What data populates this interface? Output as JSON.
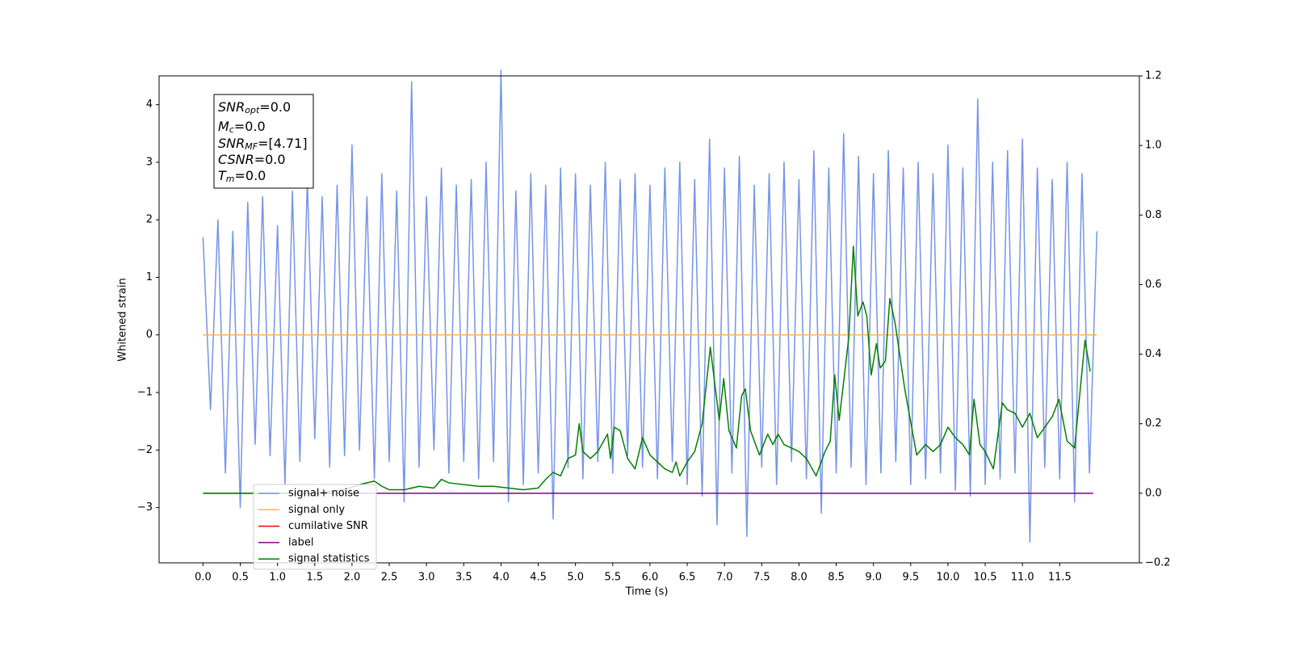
{
  "chart_data": {
    "type": "line",
    "xlabel": "Time (s)",
    "ylabel": "Whitened strain",
    "xlim": [
      -0.59,
      12.57
    ],
    "ylim": [
      -3.96,
      4.5
    ],
    "y2lim": [
      -0.2,
      1.2
    ],
    "xticks": [
      {
        "value": 0,
        "label": "0.0"
      },
      0.5,
      {
        "value": 1,
        "label": "1.0"
      },
      1.5,
      {
        "value": 2,
        "label": "2.0"
      },
      2.5,
      {
        "value": 3,
        "label": "3.0"
      },
      3.5,
      {
        "value": 4,
        "label": "4.0"
      },
      4.5,
      {
        "value": 5,
        "label": "5.0"
      },
      5.5,
      {
        "value": 6,
        "label": "6.0"
      },
      6.5,
      {
        "value": 7,
        "label": "7.0"
      },
      7.5,
      {
        "value": 8,
        "label": "8.0"
      },
      8.5,
      {
        "value": 9,
        "label": "9.0"
      },
      9.5,
      {
        "value": 10,
        "label": "10.0"
      },
      10.5,
      {
        "value": 11,
        "label": "11.0"
      },
      11.5
    ],
    "yticks": [
      {
        "value": -3,
        "label": "−3"
      },
      {
        "value": -2,
        "label": "−2"
      },
      {
        "value": -1,
        "label": "−1"
      },
      0,
      1,
      2,
      3,
      4
    ],
    "y2ticks": [
      {
        "value": -0.2,
        "label": "−0.2"
      },
      {
        "value": 0,
        "label": "0.0"
      },
      0.2,
      0.4,
      0.6,
      0.8,
      {
        "value": 1,
        "label": "1.0"
      },
      1.2
    ],
    "legend": "lower left",
    "annotation": [
      {
        "main": "SNR",
        "sub": "opt",
        "rest": "=0.0"
      },
      {
        "main": "M",
        "sub": "c",
        "rest": "=0.0"
      },
      {
        "main": "SNR",
        "sub": "MF",
        "rest": "=[4.71]"
      },
      {
        "main": "CSNR",
        "rest": "=0.0"
      },
      {
        "main": "T",
        "sub": "m",
        "rest": "=0.0"
      }
    ],
    "series": [
      {
        "name": "signal+ noise",
        "color": "#7694e8",
        "axis": "y",
        "x": [
          0,
          0.1,
          0.2,
          0.3,
          0.4,
          0.5,
          0.6,
          0.7,
          0.8,
          0.9,
          1,
          1.1,
          1.2,
          1.3,
          1.4,
          1.5,
          1.6,
          1.7,
          1.8,
          1.9,
          2,
          2.1,
          2.2,
          2.3,
          2.4,
          2.5,
          2.6,
          2.7,
          2.8,
          2.9,
          3,
          3.1,
          3.2,
          3.3,
          3.4,
          3.5,
          3.6,
          3.7,
          3.8,
          3.9,
          4,
          4.1,
          4.2,
          4.3,
          4.4,
          4.5,
          4.6,
          4.7,
          4.8,
          4.9,
          5,
          5.1,
          5.2,
          5.3,
          5.4,
          5.5,
          5.6,
          5.7,
          5.8,
          5.9,
          6,
          6.1,
          6.2,
          6.3,
          6.4,
          6.5,
          6.6,
          6.7,
          6.8,
          6.9,
          7,
          7.1,
          7.2,
          7.3,
          7.4,
          7.5,
          7.6,
          7.7,
          7.8,
          7.9,
          8,
          8.1,
          8.2,
          8.3,
          8.4,
          8.5,
          8.6,
          8.7,
          8.8,
          8.9,
          9,
          9.1,
          9.2,
          9.3,
          9.4,
          9.5,
          9.6,
          9.7,
          9.8,
          9.9,
          10,
          10.1,
          10.2,
          10.3,
          10.4,
          10.5,
          10.6,
          10.7,
          10.8,
          10.9,
          11,
          11.1,
          11.2,
          11.3,
          11.4,
          11.5,
          11.6,
          11.7,
          11.8,
          11.9,
          12
        ],
        "values": [
          1.7,
          -1.3,
          2.0,
          -2.4,
          1.8,
          -3.0,
          2.3,
          -1.9,
          2.4,
          -2.1,
          1.9,
          -2.6,
          2.5,
          -2.2,
          2.7,
          -1.8,
          2.4,
          -2.3,
          2.6,
          -2.1,
          3.3,
          -2.0,
          2.4,
          -2.5,
          2.8,
          -2.2,
          2.5,
          -2.9,
          4.4,
          -2.3,
          2.4,
          -2.0,
          2.9,
          -2.4,
          2.6,
          -2.2,
          2.7,
          -2.5,
          3.0,
          -2.2,
          4.6,
          -2.9,
          2.5,
          -2.6,
          2.8,
          -2.4,
          2.6,
          -3.2,
          2.9,
          -2.3,
          2.8,
          -2.5,
          2.6,
          -2.2,
          3.0,
          -2.4,
          2.7,
          -2.1,
          2.8,
          -2.3,
          2.6,
          -2.5,
          2.9,
          -2.2,
          3.0,
          -2.6,
          2.7,
          -2.8,
          3.4,
          -3.3,
          2.9,
          -2.4,
          3.1,
          -3.5,
          2.6,
          -2.3,
          2.8,
          -2.6,
          3.0,
          -2.2,
          2.7,
          -2.5,
          3.2,
          -3.1,
          2.9,
          -2.4,
          3.5,
          -2.3,
          3.1,
          -2.6,
          2.8,
          -2.4,
          3.2,
          -2.2,
          2.9,
          -2.6,
          3.0,
          -2.5,
          2.8,
          -2.4,
          3.3,
          -2.7,
          2.9,
          -2.8,
          4.1,
          -2.6,
          3.0,
          -2.5,
          3.2,
          -2.4,
          3.4,
          -3.6,
          2.9,
          -2.3,
          2.7,
          -2.5,
          3.0,
          -2.9,
          2.8,
          -2.4,
          1.8
        ]
      },
      {
        "name": "signal only",
        "color": "#f5b74f",
        "axis": "y",
        "x": [
          0,
          12
        ],
        "values": [
          0,
          0
        ]
      },
      {
        "name": "cumilative SNR",
        "color": "#ff0000",
        "axis": "y2"
      },
      {
        "name": "label",
        "color": "#800080",
        "axis": "y2",
        "x": [
          0,
          11.95
        ],
        "values": [
          0,
          0
        ]
      },
      {
        "name": "signal statistics",
        "color": "#008000",
        "axis": "y2",
        "x": [
          0,
          0.5,
          1,
          1.5,
          1.9,
          2.1,
          2.3,
          2.4,
          2.5,
          2.7,
          2.9,
          3.1,
          3.2,
          3.3,
          3.5,
          3.7,
          3.9,
          4.1,
          4.3,
          4.5,
          4.6,
          4.7,
          4.8,
          4.9,
          5.0,
          5.05,
          5.1,
          5.2,
          5.3,
          5.43,
          5.47,
          5.52,
          5.6,
          5.7,
          5.8,
          5.9,
          6.0,
          6.1,
          6.2,
          6.3,
          6.35,
          6.4,
          6.5,
          6.6,
          6.7,
          6.81,
          6.93,
          6.99,
          7.06,
          7.16,
          7.23,
          7.28,
          7.35,
          7.47,
          7.58,
          7.65,
          7.72,
          7.8,
          7.9,
          8.0,
          8.1,
          8.23,
          8.35,
          8.42,
          8.48,
          8.54,
          8.67,
          8.73,
          8.79,
          8.86,
          8.91,
          8.97,
          9.04,
          9.09,
          9.16,
          9.22,
          9.29,
          9.42,
          9.58,
          9.7,
          9.8,
          9.9,
          10.0,
          10.1,
          10.2,
          10.29,
          10.33,
          10.35,
          10.43,
          10.5,
          10.61,
          10.73,
          10.8,
          10.9,
          11.0,
          11.1,
          11.2,
          11.3,
          11.4,
          11.49,
          11.6,
          11.7,
          11.84,
          11.91
        ],
        "values": [
          0,
          0,
          0,
          0,
          0.01,
          0.025,
          0.035,
          0.02,
          0.01,
          0.01,
          0.02,
          0.015,
          0.04,
          0.03,
          0.025,
          0.02,
          0.02,
          0.015,
          0.01,
          0.015,
          0.04,
          0.06,
          0.05,
          0.1,
          0.11,
          0.2,
          0.12,
          0.1,
          0.12,
          0.17,
          0.1,
          0.19,
          0.18,
          0.1,
          0.07,
          0.16,
          0.11,
          0.09,
          0.07,
          0.06,
          0.09,
          0.05,
          0.09,
          0.12,
          0.2,
          0.42,
          0.21,
          0.33,
          0.18,
          0.13,
          0.28,
          0.3,
          0.18,
          0.11,
          0.17,
          0.14,
          0.17,
          0.14,
          0.13,
          0.12,
          0.1,
          0.05,
          0.12,
          0.15,
          0.34,
          0.21,
          0.45,
          0.71,
          0.51,
          0.55,
          0.51,
          0.34,
          0.43,
          0.36,
          0.38,
          0.56,
          0.49,
          0.3,
          0.11,
          0.14,
          0.12,
          0.14,
          0.19,
          0.16,
          0.14,
          0.11,
          0.22,
          0.27,
          0.14,
          0.12,
          0.07,
          0.26,
          0.24,
          0.23,
          0.19,
          0.23,
          0.16,
          0.19,
          0.22,
          0.27,
          0.15,
          0.13,
          0.44,
          0.35
        ]
      }
    ]
  }
}
